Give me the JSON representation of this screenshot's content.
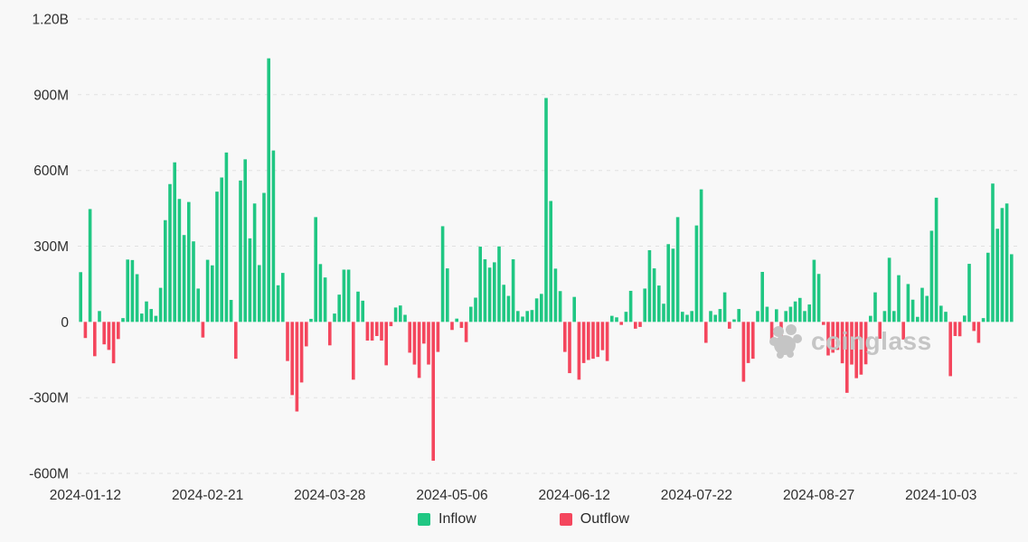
{
  "watermark": {
    "text": "coinglass"
  },
  "chart_data": {
    "type": "bar",
    "title": "",
    "xlabel": "",
    "ylabel": "",
    "description": "Daily net flow bars: positive values rendered as green Inflow bars, negative values as red Outflow bars",
    "grid": "horizontal-dashed",
    "legend_position": "bottom",
    "legend": [
      {
        "label": "Inflow",
        "color": "#20c783"
      },
      {
        "label": "Outflow",
        "color": "#f4465d"
      }
    ],
    "y_axis": {
      "range_millions": [
        -600,
        1200
      ],
      "tick_values_millions": [
        1200,
        900,
        600,
        300,
        0,
        -300,
        -600
      ],
      "tick_labels": [
        "1.20B",
        "900M",
        "600M",
        "300M",
        "0",
        "-300M",
        "-600M"
      ]
    },
    "x_axis": {
      "tick_labels": [
        "2024-01-12",
        "2024-02-21",
        "2024-03-28",
        "2024-05-06",
        "2024-06-12",
        "2024-07-22",
        "2024-08-27",
        "2024-10-03"
      ],
      "tick_bar_indices": [
        1,
        27,
        53,
        79,
        105,
        131,
        157,
        183
      ]
    },
    "values_in_millions": [
      197,
      -64,
      447,
      -136,
      43,
      -89,
      -111,
      -164,
      -68,
      15,
      247,
      245,
      189,
      33,
      81,
      51,
      24,
      135,
      403,
      546,
      632,
      487,
      344,
      475,
      319,
      132,
      -62,
      246,
      224,
      516,
      572,
      671,
      87,
      -146,
      560,
      644,
      331,
      469,
      225,
      511,
      1044,
      679,
      145,
      194,
      -155,
      -290,
      -355,
      -240,
      -97,
      12,
      415,
      229,
      176,
      -93,
      33,
      108,
      207,
      207,
      -229,
      120,
      84,
      -74,
      -74,
      -56,
      -74,
      -172,
      -17,
      57,
      65,
      28,
      -122,
      -169,
      -222,
      -86,
      -169,
      -550,
      -119,
      379,
      212,
      -32,
      13,
      -24,
      -80,
      60,
      96,
      298,
      248,
      215,
      236,
      299,
      147,
      103,
      248,
      43,
      21,
      43,
      47,
      93,
      111,
      887,
      479,
      211,
      122,
      -119,
      -203,
      99,
      -229,
      -163,
      -151,
      -146,
      -139,
      -112,
      -155,
      24,
      18,
      -12,
      40,
      123,
      -27,
      -20,
      132,
      284,
      212,
      144,
      72,
      308,
      290,
      415,
      40,
      28,
      43,
      382,
      525,
      -83,
      43,
      28,
      51,
      117,
      -27,
      10,
      51,
      -237,
      -163,
      -146,
      43,
      198,
      60,
      -86,
      50,
      -98,
      43,
      60,
      81,
      95,
      43,
      69,
      246,
      190,
      -12,
      -133,
      -122,
      -111,
      -164,
      -281,
      -169,
      -223,
      -209,
      -168,
      24,
      117,
      -67,
      43,
      254,
      43,
      185,
      -70,
      150,
      88,
      20,
      135,
      103,
      361,
      492,
      64,
      40,
      -215,
      -56,
      -57,
      25,
      230,
      -36,
      -83,
      15,
      274,
      548,
      369,
      451,
      469,
      268
    ]
  }
}
